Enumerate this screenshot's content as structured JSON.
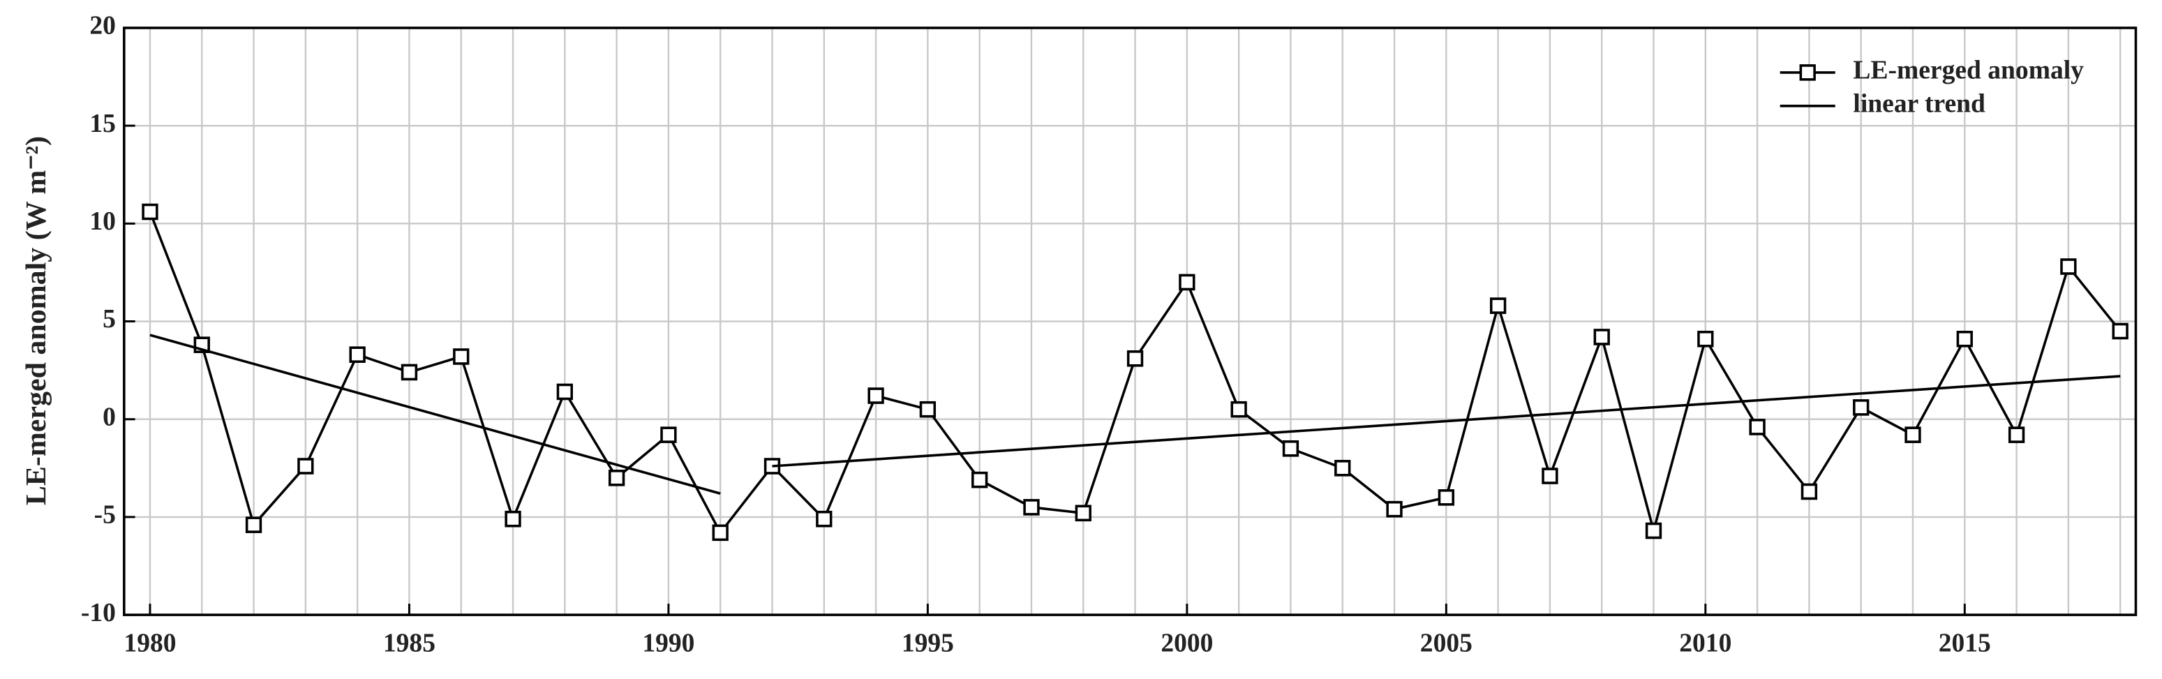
{
  "chart_data": {
    "type": "line",
    "y_label": "LE-merged anomaly (W m⁻²)",
    "x": [
      1980,
      1981,
      1982,
      1983,
      1984,
      1985,
      1986,
      1987,
      1988,
      1989,
      1990,
      1991,
      1992,
      1993,
      1994,
      1995,
      1996,
      1997,
      1998,
      1999,
      2000,
      2001,
      2002,
      2003,
      2004,
      2005,
      2006,
      2007,
      2008,
      2009,
      2010,
      2011,
      2012,
      2013,
      2014,
      2015,
      2016,
      2017,
      2018
    ],
    "series": [
      {
        "name": "LE-merged anomaly",
        "color": "#000000",
        "marker": "square",
        "values": [
          10.6,
          3.8,
          -5.4,
          -2.4,
          3.3,
          2.4,
          3.2,
          -5.1,
          1.4,
          -3.0,
          -0.8,
          -5.8,
          -2.4,
          -5.1,
          1.2,
          0.5,
          -3.1,
          -4.5,
          -4.8,
          3.1,
          7.0,
          0.5,
          -1.5,
          -2.5,
          -4.6,
          -4.0,
          5.8,
          -2.9,
          4.2,
          -5.7,
          4.1,
          -0.4,
          -3.7,
          0.6,
          -0.8,
          4.1,
          -0.8,
          7.8,
          4.5
        ]
      },
      {
        "name": "linear trend",
        "color": "#000000",
        "x": [
          1980,
          1991,
          null,
          1992,
          2018
        ],
        "values": [
          4.3,
          -3.8,
          null,
          -2.4,
          2.2
        ]
      }
    ],
    "xlim": [
      1979.5,
      2018.3
    ],
    "xticks": [
      1980,
      1985,
      1990,
      1995,
      2000,
      2005,
      2010,
      2015
    ],
    "ylim": [
      -10,
      20
    ],
    "yticks": [
      -10,
      -5,
      0,
      5,
      10,
      15,
      20
    ],
    "grid": true,
    "legend": "upper right"
  }
}
